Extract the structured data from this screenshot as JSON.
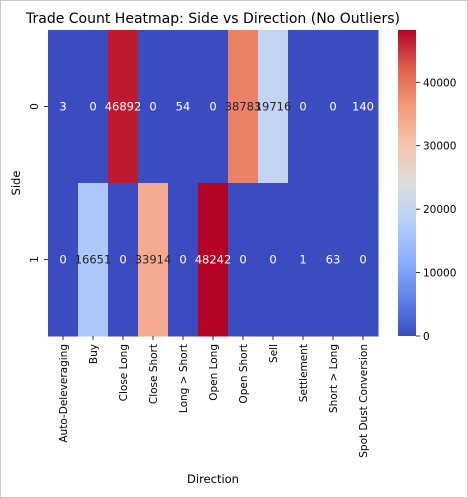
{
  "chart_data": {
    "type": "heatmap",
    "title": "Trade Count Heatmap: Side vs Direction (No Outliers)",
    "xlabel": "Direction",
    "ylabel": "Side",
    "x_categories": [
      "Auto-Deleveraging",
      "Buy",
      "Close Long",
      "Close Short",
      "Long > Short",
      "Open Long",
      "Open Short",
      "Sell",
      "Settlement",
      "Short > Long",
      "Spot Dust Conversion"
    ],
    "y_categories": [
      "0",
      "1"
    ],
    "values": [
      [
        3,
        0,
        46892,
        0,
        54,
        0,
        38783,
        19716,
        0,
        0,
        140
      ],
      [
        0,
        16651,
        0,
        33914,
        0,
        48242,
        0,
        0,
        1,
        63,
        0
      ]
    ],
    "value_labels": [
      [
        "3",
        "0",
        "46892",
        "0",
        "54",
        "0",
        "38783",
        "19716",
        "0",
        "0",
        "140"
      ],
      [
        "0",
        "16651",
        "0",
        "33914",
        "0",
        "48242",
        "0",
        "0",
        "1",
        "63",
        "0"
      ]
    ],
    "colormap": "coolwarm",
    "vmin": 0,
    "vmax": 48242,
    "colorbar_ticks": [
      "0",
      "10000",
      "20000",
      "30000",
      "40000"
    ],
    "colorbar_tick_values": [
      0,
      10000,
      20000,
      30000,
      40000
    ]
  }
}
